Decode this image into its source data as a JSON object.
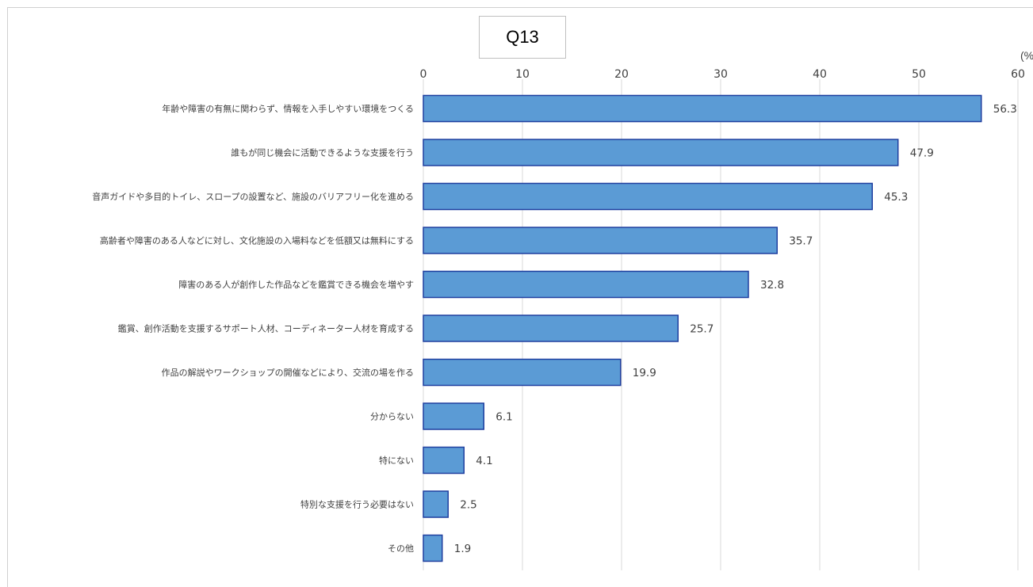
{
  "chart_data": {
    "type": "bar",
    "orientation": "horizontal",
    "title": "Q13",
    "unit": "(%",
    "xlim": [
      0,
      60
    ],
    "xticks": [
      0,
      10,
      20,
      30,
      40,
      50,
      60
    ],
    "grid": true,
    "categories": [
      "年齢や障害の有無に関わらず、情報を入手しやすい環境をつくる",
      "誰もが同じ機会に活動できるような支援を行う",
      "音声ガイドや多目的トイレ、スロープの設置など、施設のバリアフリー化を進める",
      "高齢者や障害のある人などに対し、文化施設の入場料などを低額又は無料にする",
      "障害のある人が創作した作品などを鑑賞できる機会を増やす",
      "鑑賞、創作活動を支援するサポート人材、コーディネーター人材を育成する",
      "作品の解説やワークショップの開催などにより、交流の場を作る",
      "分からない",
      "特にない",
      "特別な支援を行う必要はない",
      "その他"
    ],
    "values": [
      56.3,
      47.9,
      45.3,
      35.7,
      32.8,
      25.7,
      19.9,
      6.1,
      4.1,
      2.5,
      1.9
    ],
    "colors": {
      "bar_fill": "#5b9bd5",
      "bar_stroke": "#1f3f9f",
      "grid": "#d9d9d9",
      "text": "#404040"
    }
  }
}
